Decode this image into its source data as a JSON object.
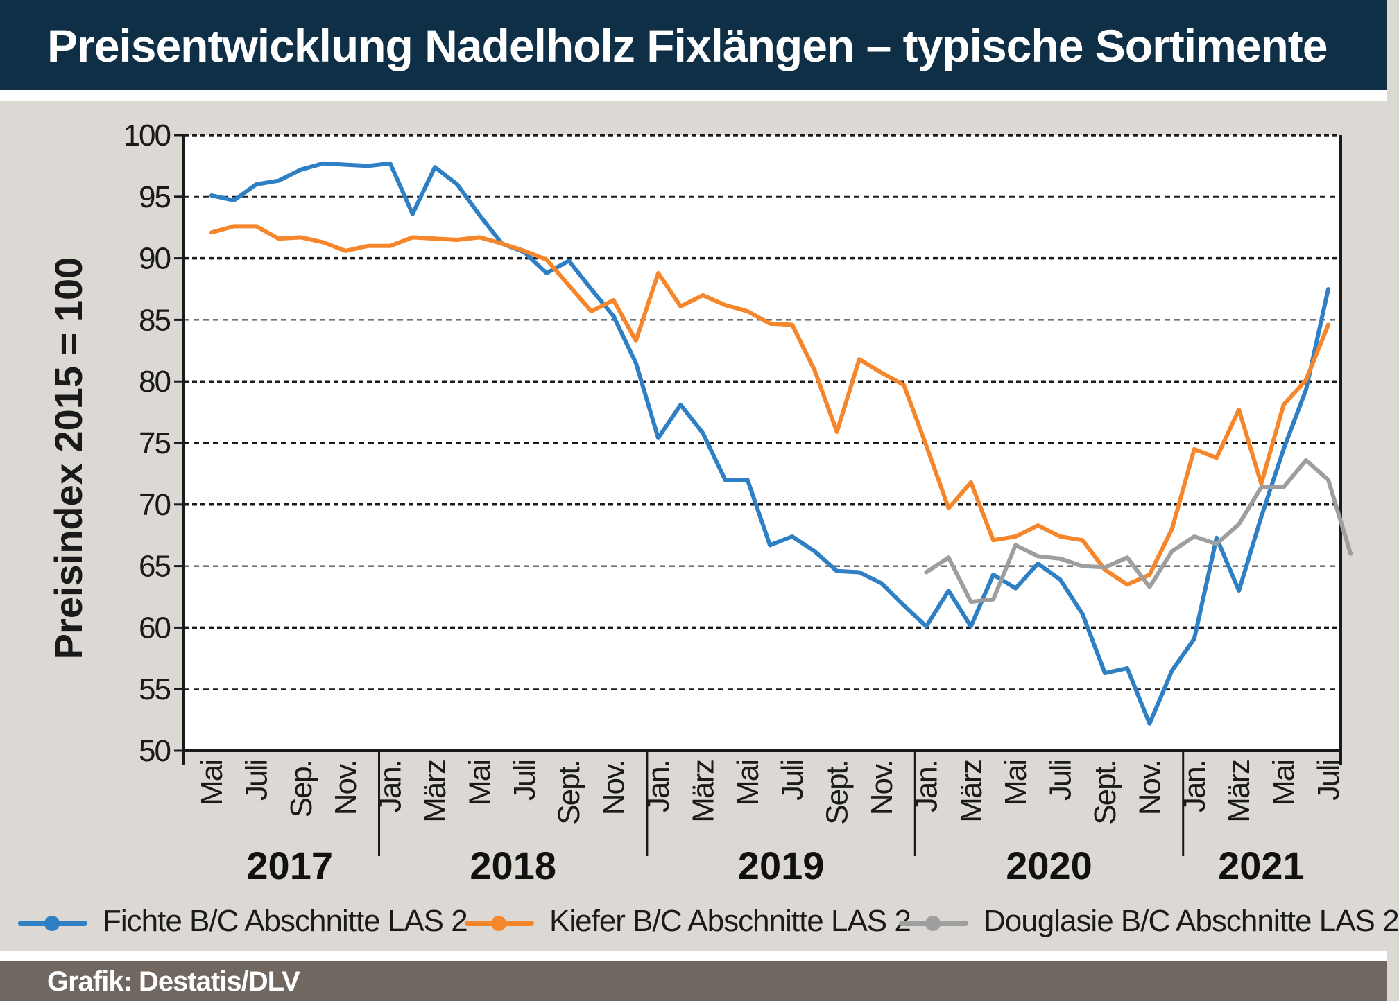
{
  "header": {
    "title": "Preisentwicklung Nadelholz Fixlängen – typische Sortimente"
  },
  "source": "Grafik: Destatis/DLV",
  "colors": {
    "title_bg": "#0f2f47",
    "fichte": "#2e7fc4",
    "kiefer": "#f5862b",
    "douglasie": "#9e9e9e",
    "source_bg": "#6f6760"
  },
  "chart_data": {
    "type": "line",
    "ylabel": "Preisindex 2015 = 100",
    "ylim": [
      50,
      100
    ],
    "yticks": [
      100,
      95,
      90,
      85,
      80,
      75,
      70,
      65,
      60,
      55,
      50
    ],
    "grid": true,
    "legend_position": "bottom",
    "x_tick_labels": [
      {
        "index": 0,
        "label": "Mai"
      },
      {
        "index": 2,
        "label": "Juli"
      },
      {
        "index": 4,
        "label": "Sep."
      },
      {
        "index": 6,
        "label": "Nov."
      },
      {
        "index": 8,
        "label": "Jan."
      },
      {
        "index": 10,
        "label": "März"
      },
      {
        "index": 12,
        "label": "Mai"
      },
      {
        "index": 14,
        "label": "Juli"
      },
      {
        "index": 16,
        "label": "Sept."
      },
      {
        "index": 18,
        "label": "Nov."
      },
      {
        "index": 20,
        "label": "Jan."
      },
      {
        "index": 22,
        "label": "März"
      },
      {
        "index": 24,
        "label": "Mai"
      },
      {
        "index": 26,
        "label": "Juli"
      },
      {
        "index": 28,
        "label": "Sept."
      },
      {
        "index": 30,
        "label": "Nov."
      },
      {
        "index": 32,
        "label": "Jan."
      },
      {
        "index": 34,
        "label": "März"
      },
      {
        "index": 36,
        "label": "Mai"
      },
      {
        "index": 38,
        "label": "Juli"
      },
      {
        "index": 40,
        "label": "Sept."
      },
      {
        "index": 42,
        "label": "Nov."
      },
      {
        "index": 44,
        "label": "Jan."
      },
      {
        "index": 46,
        "label": "März"
      },
      {
        "index": 48,
        "label": "Mai"
      },
      {
        "index": 50,
        "label": "Juli"
      }
    ],
    "years": [
      {
        "label": "2017",
        "from": 0,
        "to": 7
      },
      {
        "label": "2018",
        "from": 8,
        "to": 19
      },
      {
        "label": "2019",
        "from": 20,
        "to": 31
      },
      {
        "label": "2020",
        "from": 32,
        "to": 43
      },
      {
        "label": "2021",
        "from": 44,
        "to": 50
      }
    ],
    "x_start": "2017-05",
    "series": [
      {
        "name": "Fichte B/C Abschnitte LAS 2",
        "color": "#2e7fc4",
        "values": [
          95.1,
          94.7,
          96.0,
          96.3,
          97.2,
          97.7,
          97.6,
          97.5,
          97.7,
          93.6,
          97.4,
          96.0,
          93.5,
          91.2,
          90.5,
          88.8,
          89.8,
          87.5,
          85.3,
          81.5,
          75.4,
          78.1,
          75.8,
          72.0,
          72.0,
          66.7,
          67.4,
          66.2,
          64.6,
          64.5,
          63.6,
          61.8,
          60.1,
          63.0,
          60.1,
          64.3,
          63.2,
          65.2,
          63.9,
          61.1,
          56.3,
          56.7,
          52.2,
          56.5,
          59.1,
          67.3,
          63.0,
          69.0,
          74.5,
          79.3,
          87.5
        ]
      },
      {
        "name": "Kiefer B/C Abschnitte LAS 2",
        "color": "#f5862b",
        "values": [
          92.1,
          92.6,
          92.6,
          91.6,
          91.7,
          91.3,
          90.6,
          91.0,
          91.0,
          91.7,
          91.6,
          91.5,
          91.7,
          91.2,
          90.6,
          89.9,
          87.8,
          85.7,
          86.6,
          83.3,
          88.8,
          86.1,
          87.0,
          86.2,
          85.7,
          84.7,
          84.6,
          80.9,
          75.9,
          81.8,
          80.7,
          79.7,
          74.8,
          69.7,
          71.8,
          67.1,
          67.4,
          68.3,
          67.4,
          67.1,
          64.7,
          63.5,
          64.3,
          68.0,
          74.5,
          73.8,
          77.7,
          71.7,
          78.1,
          80.1,
          84.6
        ]
      },
      {
        "name": "Douglasie B/C Abschnitte LAS 2",
        "color": "#9e9e9e",
        "start_index": 32,
        "values": [
          64.5,
          65.7,
          62.1,
          62.3,
          66.7,
          65.8,
          65.6,
          65.0,
          64.9,
          65.7,
          63.3,
          66.2,
          67.4,
          66.8,
          68.4,
          71.4,
          71.4,
          73.6,
          72.0,
          66.0
        ]
      }
    ]
  }
}
